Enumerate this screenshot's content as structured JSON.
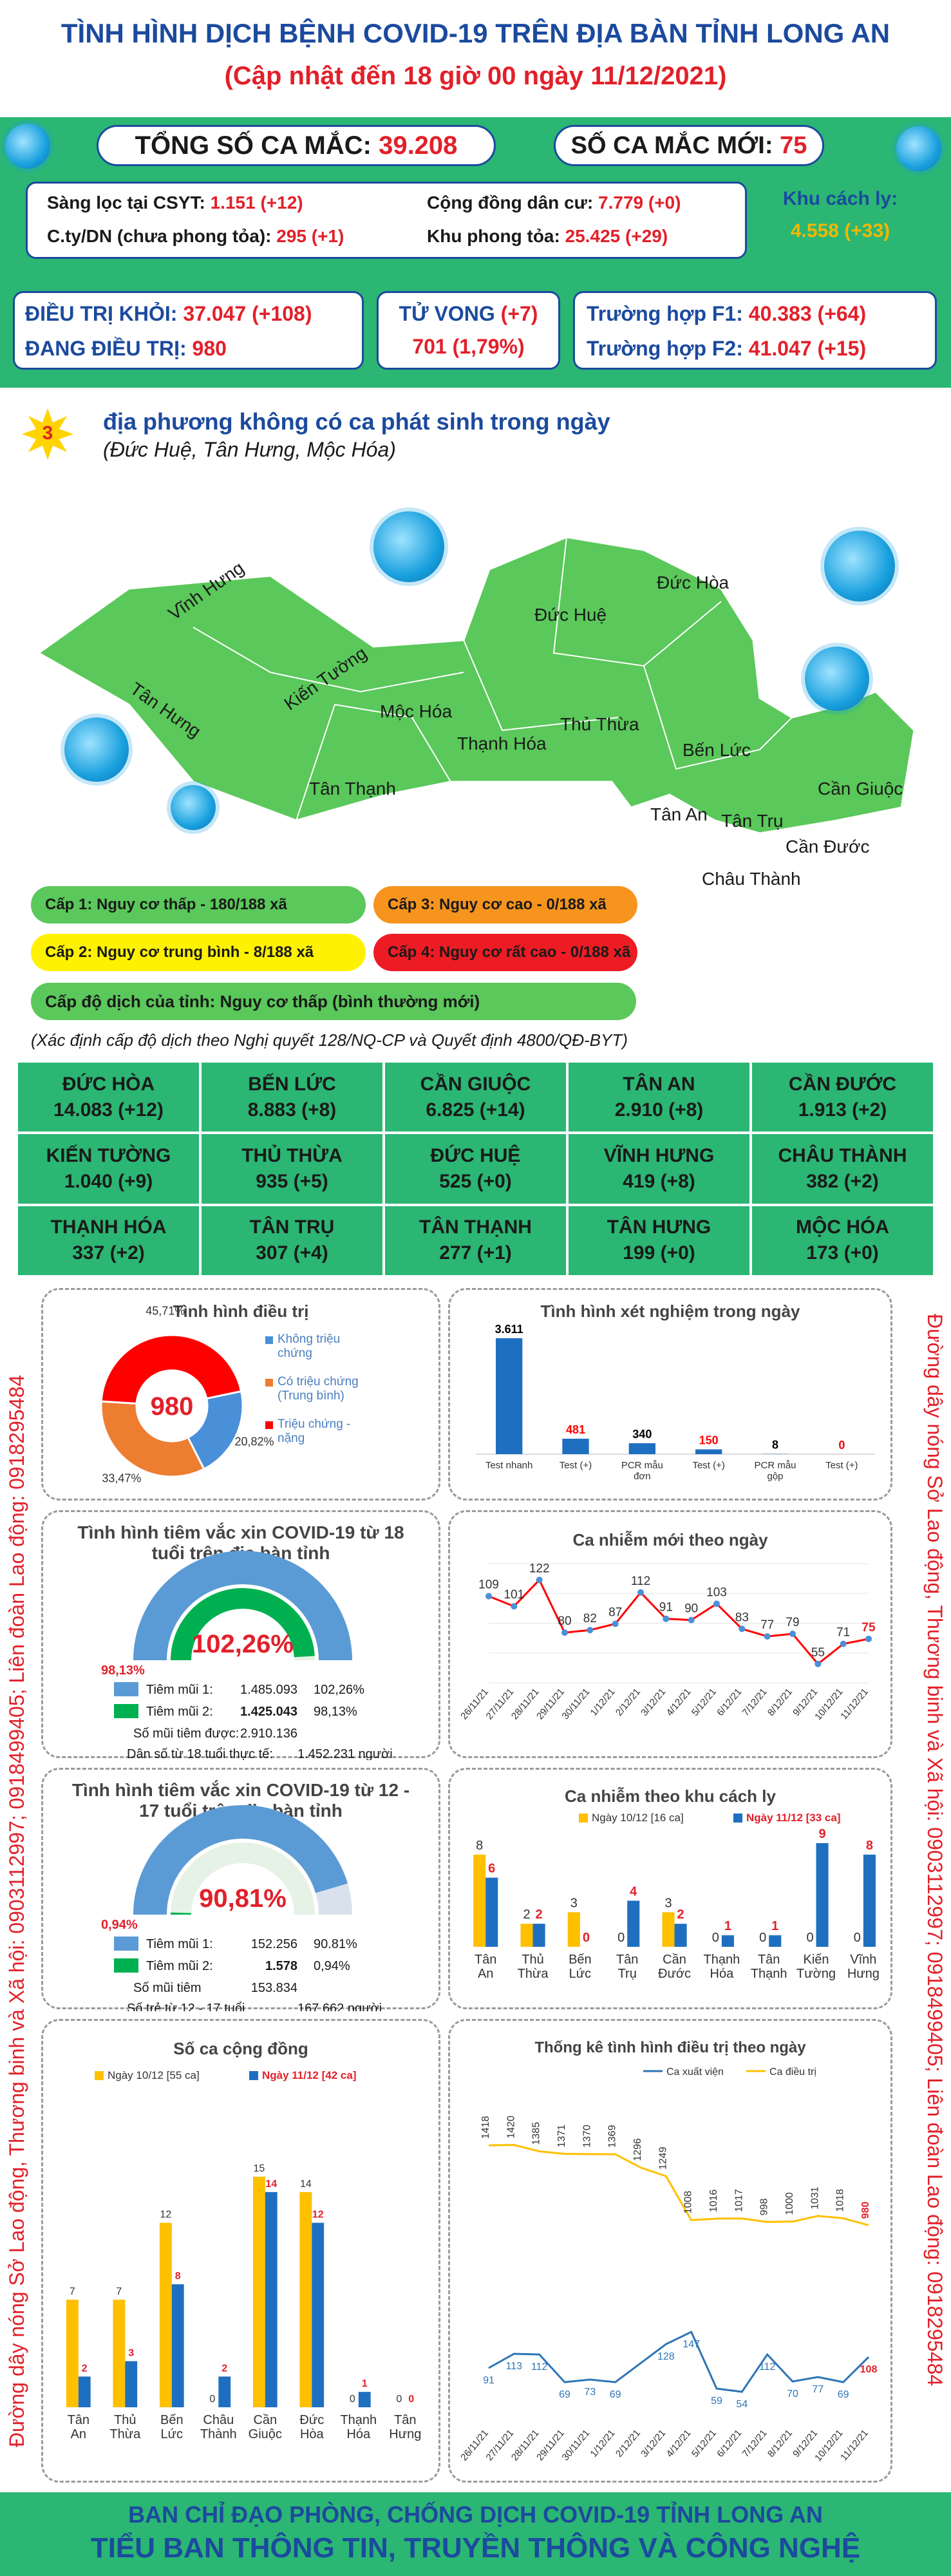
{
  "header": {
    "title": "TÌNH HÌNH DỊCH BỆNH COVID-19 TRÊN ĐỊA BÀN TỈNH LONG AN",
    "subtitle": "(Cập nhật đến 18 giờ 00 ngày 11/12/2021)"
  },
  "stats": {
    "total_label": "TỔNG SỐ CA MẮC:",
    "total_value": "39.208",
    "new_label": "SỐ CA MẮC MỚI:",
    "new_value": "75",
    "screen_label": "Sàng lọc tại CSYT:",
    "screen_value": "1.151 (+12)",
    "company_label": "C.ty/DN (chưa phong tỏa):",
    "company_value": "295 (+1)",
    "community_label": "Cộng đồng dân cư:",
    "community_value": "7.779 (+0)",
    "lockdown_label": "Khu phong tỏa:",
    "lockdown_value": "25.425 (+29)",
    "isolation_label": "Khu cách ly:",
    "isolation_value": "4.558 (+33)",
    "recovered_label": "ĐIỀU TRỊ KHỎI:",
    "recovered_value": "37.047 (+108)",
    "treating_label": "ĐANG ĐIỀU TRỊ:",
    "treating_value": "980",
    "death_label": "TỬ VONG",
    "death_delta": "(+7)",
    "death_value": "701 (1,79%)",
    "f1_label": "Trường hợp F1:",
    "f1_value": "40.383 (+64)",
    "f2_label": "Trường hợp F2:",
    "f2_value": "41.047 (+15)"
  },
  "map": {
    "count": "3",
    "heading": "địa phương không có ca phát sinh trong ngày",
    "sub": "(Đức Huệ, Tân Hưng, Mộc Hóa)",
    "districts": [
      "Vĩnh Hưng",
      "Tân Hưng",
      "Kiến Tường",
      "Mộc Hóa",
      "Đức Huệ",
      "Đức Hòa",
      "Thủ Thừa",
      "Thạnh Hóa",
      "Bến Lức",
      "Tân Thạnh",
      "Tân An",
      "Tân Trụ",
      "Cần Giuộc",
      "Cần Đước",
      "Châu Thành"
    ],
    "level1": "Cấp 1: Nguy cơ thấp - 180/188 xã",
    "level2": "Cấp 2: Nguy cơ trung bình - 8/188 xã",
    "level3": "Cấp 3: Nguy cơ cao - 0/188 xã",
    "level4": "Cấp 4: Nguy cơ rất cao - 0/188 xã",
    "province_level": "Cấp độ dịch của tỉnh: Nguy cơ thấp (bình thường mới)",
    "note": "(Xác định cấp độ dịch theo Nghị quyết 128/NQ-CP và Quyết định 4800/QĐ-BYT)",
    "colors": {
      "level1": "#5ac85a",
      "level2": "#fff200",
      "level3": "#f7941d",
      "level4": "#ed1c24",
      "map": "#5ac85a"
    }
  },
  "districts_table": [
    {
      "name": "ĐỨC HÒA",
      "value": "14.083 (+12)"
    },
    {
      "name": "BẾN LỨC",
      "value": "8.883 (+8)"
    },
    {
      "name": "CẦN GIUỘC",
      "value": "6.825 (+14)"
    },
    {
      "name": "TÂN AN",
      "value": "2.910 (+8)"
    },
    {
      "name": "CẦN ĐƯỚC",
      "value": "1.913 (+2)"
    },
    {
      "name": "KIẾN TƯỜNG",
      "value": "1.040 (+9)"
    },
    {
      "name": "THỦ THỪA",
      "value": "935 (+5)"
    },
    {
      "name": "ĐỨC HUỆ",
      "value": "525 (+0)"
    },
    {
      "name": "VĨNH HƯNG",
      "value": "419 (+8)"
    },
    {
      "name": "CHÂU THÀNH",
      "value": "382 (+2)"
    },
    {
      "name": "THẠNH HÓA",
      "value": "337 (+2)"
    },
    {
      "name": "TÂN TRỤ",
      "value": "307 (+4)"
    },
    {
      "name": "TÂN THẠNH",
      "value": "277 (+1)"
    },
    {
      "name": "TÂN HƯNG",
      "value": "199 (+0)"
    },
    {
      "name": "MỘC HÓA",
      "value": "173 (+0)"
    }
  ],
  "side_text": {
    "left": "Đường dây nóng Sở Lao động, Thương binh và Xã hội: 0903112997; 0918499405; Liên đoàn Lao động: 0918295484",
    "right": "Đường dây nóng Sở Lao động, Thương binh và Xã hội: 0903112997; 0918499405; Liên đoàn Lao động: 0918295484"
  },
  "chart_data": [
    {
      "type": "pie",
      "title": "Tình hình điều trị",
      "center_label": "980",
      "categories": [
        "Không triệu chứng",
        "Có triệu chứng (Trung bình)",
        "Triệu chứng - nặng"
      ],
      "values": [
        20.82,
        33.47,
        45.71
      ],
      "data_labels": [
        "20,82%",
        "33,47%",
        "45,71%"
      ],
      "colors": [
        "#4a90d9",
        "#ed7d31",
        "#ff0000"
      ],
      "legend": "right"
    },
    {
      "type": "bar",
      "title": "Tình hình xét nghiệm trong ngày",
      "categories": [
        "Test nhanh",
        "Test (+)",
        "PCR mẫu đơn",
        "Test (+)",
        "PCR mẫu gộp",
        "Test (+)"
      ],
      "values": [
        3611,
        481,
        340,
        150,
        8,
        0
      ],
      "data_labels": [
        "3.611",
        "481",
        "340",
        "150",
        "8",
        "0"
      ],
      "label_colors": [
        "#000000",
        "#ff0000",
        "#000000",
        "#ff0000",
        "#000000",
        "#ff0000"
      ],
      "color": "#1f6fc0"
    },
    {
      "type": "gauge",
      "title": "Tình hình tiêm vắc xin COVID-19 từ 18 tuổi trên địa bàn tỉnh",
      "series": [
        {
          "name": "Tiêm mũi 1:",
          "value": 102.26,
          "display": "102,26%",
          "count": "1.485.093"
        },
        {
          "name": "Tiêm mũi 2:",
          "value": 98.13,
          "display": "98,13%",
          "count": "1.425.043"
        }
      ],
      "center_label": "102,26%",
      "inner_label": "98,13%",
      "total_label": "Số mũi tiêm được:",
      "total_value": "2.910.136",
      "population_label": "Dân số từ 18 tuổi thực tế:",
      "population_value": "1.452.231 người",
      "colors": [
        "#5b9bd5",
        "#00b050"
      ]
    },
    {
      "type": "line",
      "title": "Ca nhiễm mới theo ngày",
      "x": [
        "26/11/21",
        "27/11/21",
        "28/11/21",
        "29/11/21",
        "30/11/21",
        "1/12/21",
        "2/12/21",
        "3/12/21",
        "4/12/21",
        "5/12/21",
        "6/12/21",
        "7/12/21",
        "8/12/21",
        "9/12/21",
        "10/12/21",
        "11/12/21"
      ],
      "values": [
        109,
        101,
        122,
        80,
        82,
        87,
        112,
        91,
        90,
        103,
        83,
        77,
        79,
        55,
        71,
        75
      ],
      "colors": {
        "line": "#ff0000",
        "marker": "#4a90d9"
      }
    },
    {
      "type": "gauge",
      "title": "Tình hình tiêm vắc xin COVID-19 từ 12 - 17 tuổi trên địa bàn tỉnh",
      "series": [
        {
          "name": "Tiêm mũi 1:",
          "value": 90.81,
          "display": "90.81%",
          "count": "152.256"
        },
        {
          "name": "Tiêm mũi 2:",
          "value": 0.94,
          "display": "0,94%",
          "count": "1.578"
        }
      ],
      "center_label": "90,81%",
      "inner_label": "0,94%",
      "total_label": "Số mũi tiêm",
      "total_value": "153.834",
      "population_label": "Số trẻ từ 12 - 17 tuổi",
      "population_value": "167.662 người",
      "colors": [
        "#5b9bd5",
        "#00b050"
      ]
    },
    {
      "type": "bar",
      "title": "Ca nhiễm theo khu cách ly",
      "categories": [
        "Tân An",
        "Thủ Thừa",
        "Bến Lức",
        "Tân Trụ",
        "Cần Đước",
        "Thạnh Hóa",
        "Tân Thạnh",
        "Kiến Tường",
        "Vĩnh Hưng"
      ],
      "series": [
        {
          "name": "Ngày 10/12 [16 ca]",
          "values": [
            8,
            2,
            3,
            0,
            3,
            0,
            0,
            0,
            0
          ],
          "color": "#ffc000"
        },
        {
          "name": "Ngày 11/12 [33 ca]",
          "values": [
            6,
            2,
            0,
            4,
            2,
            1,
            1,
            9,
            8
          ],
          "color": "#1f6fc0"
        }
      ],
      "legend": "top"
    },
    {
      "type": "bar",
      "title": "Số ca cộng đồng",
      "categories": [
        "Tân An",
        "Thủ Thừa",
        "Bến Lức",
        "Châu Thành",
        "Cần Giuộc",
        "Đức Hòa",
        "Thạnh Hóa",
        "Tân Hưng"
      ],
      "series": [
        {
          "name": "Ngày 10/12 [55 ca]",
          "values": [
            7,
            7,
            12,
            0,
            15,
            14,
            0,
            0
          ],
          "color": "#ffc000"
        },
        {
          "name": "Ngày 11/12 [42 ca]",
          "values": [
            2,
            3,
            8,
            2,
            14,
            12,
            1,
            0
          ],
          "color": "#1f6fc0"
        }
      ],
      "legend": "top"
    },
    {
      "type": "line",
      "title": "Thống kê tình hình điều trị theo ngày",
      "x": [
        "26/11/21",
        "27/11/21",
        "28/11/21",
        "29/11/21",
        "30/11/21",
        "1/12/21",
        "2/12/21",
        "3/12/21",
        "4/12/21",
        "5/12/21",
        "6/12/21",
        "7/12/21",
        "8/12/21",
        "9/12/21",
        "10/12/21",
        "11/12/21"
      ],
      "series": [
        {
          "name": "Ca xuất viện",
          "values": [
            91,
            113,
            112,
            69,
            73,
            69,
            null,
            128,
            147,
            59,
            54,
            112,
            70,
            77,
            69,
            108
          ],
          "color": "#2e75b6"
        },
        {
          "name": "Ca điều trị",
          "values": [
            1418,
            1420,
            1385,
            1371,
            1370,
            1369,
            1296,
            1249,
            1008,
            1016,
            1017,
            998,
            1000,
            1031,
            1018,
            980
          ],
          "color": "#ffc000"
        }
      ],
      "legend": "top"
    }
  ],
  "footer": {
    "line1": "BAN CHỈ ĐẠO PHÒNG, CHỐNG DỊCH COVID-19 TỈNH LONG AN",
    "line2": "TIỂU BAN THÔNG TIN, TRUYỀN THÔNG VÀ CÔNG NGHỆ"
  }
}
